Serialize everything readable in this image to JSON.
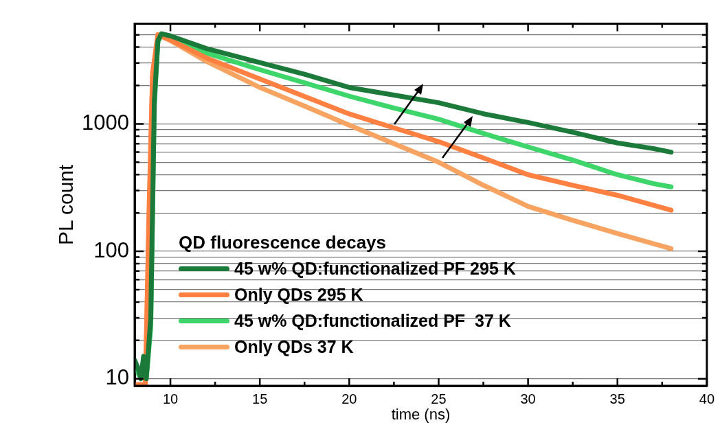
{
  "chart_data": {
    "type": "line",
    "xlabel": "time (ns)",
    "ylabel": "PL count",
    "legend_title": "QD fluorescence decays",
    "legend": "bottom left",
    "grid": true,
    "log": "y",
    "xlim": [
      8,
      40
    ],
    "xticks": [
      10,
      {
        "value": 12.5,
        "label": null
      },
      15,
      {
        "value": 17.5,
        "label": null
      },
      20,
      {
        "value": 22.5,
        "label": null
      },
      25,
      {
        "value": 27.5,
        "label": null
      },
      30,
      {
        "value": 32.5,
        "label": null
      },
      35,
      {
        "value": 37.5,
        "label": null
      },
      40
    ],
    "ylim": [
      8.8,
      6100
    ],
    "yticks": [
      10,
      {
        "value": 20,
        "label": null
      },
      {
        "value": 30,
        "label": null
      },
      {
        "value": 40,
        "label": null
      },
      {
        "value": 50,
        "label": null
      },
      {
        "value": 60,
        "label": null
      },
      {
        "value": 70,
        "label": null
      },
      {
        "value": 80,
        "label": null
      },
      {
        "value": 90,
        "label": null
      },
      100,
      {
        "value": 200,
        "label": null
      },
      {
        "value": 300,
        "label": null
      },
      {
        "value": 400,
        "label": null
      },
      {
        "value": 500,
        "label": null
      },
      {
        "value": 600,
        "label": null
      },
      {
        "value": 700,
        "label": null
      },
      {
        "value": 800,
        "label": null
      },
      {
        "value": 900,
        "label": null
      },
      1000,
      {
        "value": 2000,
        "label": null
      },
      {
        "value": 3000,
        "label": null
      },
      {
        "value": 4000,
        "label": null
      },
      {
        "value": 5000,
        "label": null
      }
    ],
    "series": [
      {
        "name": "45 w% QD:functionalized PF 295 K",
        "color": "#1b7a3a",
        "x": [
          8.0,
          8.2,
          8.35,
          8.5,
          8.65,
          8.9,
          9.1,
          9.3,
          9.5,
          10,
          12,
          15,
          17.5,
          20,
          22.5,
          25,
          27.5,
          30,
          32.5,
          35,
          37,
          38
        ],
        "values": [
          14,
          12,
          10,
          15,
          10,
          30,
          1500,
          4500,
          5100,
          4900,
          3900,
          3030,
          2450,
          1930,
          1680,
          1465,
          1200,
          1025,
          860,
          708,
          640,
          600
        ]
      },
      {
        "name": "Only QDs 295 K",
        "color": "#ff8040",
        "x": [
          8.0,
          8.3,
          8.6,
          8.8,
          9.0,
          9.3,
          10,
          12,
          15,
          17.5,
          20,
          22.5,
          25,
          27.5,
          30,
          32.5,
          35,
          37,
          38
        ],
        "values": [
          9,
          9,
          9,
          200,
          2500,
          5000,
          4550,
          3300,
          2250,
          1640,
          1196,
          930,
          725,
          540,
          399,
          330,
          275,
          230,
          210
        ]
      },
      {
        "name": "45 w% QD:functionalized PF  37 K",
        "color": "#3ed66b",
        "x": [
          8.0,
          8.2,
          8.35,
          8.5,
          8.65,
          8.9,
          9.1,
          9.3,
          9.5,
          10,
          12,
          15,
          17.5,
          20,
          22.5,
          25,
          27.5,
          30,
          32.5,
          35,
          37,
          38
        ],
        "values": [
          13,
          11,
          10,
          14,
          10,
          25,
          1400,
          4400,
          5000,
          4700,
          3600,
          2660,
          2100,
          1650,
          1330,
          1087,
          840,
          659,
          520,
          399,
          340,
          320
        ]
      },
      {
        "name": "Only QDs 37 K",
        "color": "#f7a463",
        "x": [
          8.0,
          8.3,
          8.6,
          8.8,
          9.0,
          9.3,
          10,
          12,
          15,
          17.5,
          20,
          22.5,
          25,
          27.5,
          30,
          32.5,
          35,
          37,
          38
        ],
        "values": [
          9,
          9,
          9,
          150,
          2300,
          5000,
          4500,
          3100,
          1930,
          1380,
          977,
          700,
          500,
          330,
          225,
          175,
          138,
          115,
          105
        ]
      }
    ]
  }
}
